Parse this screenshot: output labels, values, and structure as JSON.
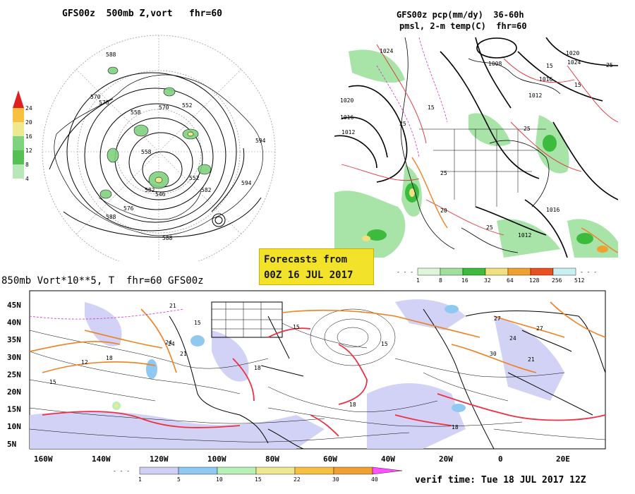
{
  "panels": {
    "top_left": {
      "title": "GFS00z  500mb Z,vort   fhr=60",
      "scale_labels": [
        "24",
        "20",
        "16",
        "12",
        "8",
        "4"
      ],
      "contour_labels": [
        "588",
        "570",
        "576",
        "558",
        "570",
        "552",
        "582",
        "594",
        "552",
        "582",
        "594",
        "576",
        "588",
        "588",
        "546",
        "558"
      ],
      "scale_colors": [
        "#e02020",
        "#f7c040",
        "#f0e890",
        "#7fd27f",
        "#56c056",
        "#b8e8b8"
      ]
    },
    "top_right": {
      "title_line1": "GFS00z pcp(mm/dy)  36-60h",
      "title_line2": "pmsl, 2-m temp(C)  fhr=60",
      "isobar_labels": [
        "1024",
        "1020",
        "1016",
        "1012",
        "1008",
        "1012",
        "1016",
        "1020",
        "1024",
        "1016",
        "1012"
      ],
      "temp_labels": [
        "15",
        "25",
        "25",
        "15",
        "25",
        "25",
        "15",
        "20",
        "25"
      ],
      "scale_labels": [
        "1",
        "8",
        "16",
        "32",
        "64",
        "128",
        "256",
        "512"
      ],
      "scale_colors": [
        "#dff5d8",
        "#9fe09f",
        "#3dbb3d",
        "#f0e080",
        "#f0a030",
        "#e85020",
        "#c8f0f0"
      ]
    },
    "bottom": {
      "title": "850mb Vort*10**5, T  fhr=60 GFS00z",
      "lat_labels": [
        "45N",
        "40N",
        "35N",
        "30N",
        "25N",
        "20N",
        "15N",
        "10N",
        "5N"
      ],
      "lon_labels": [
        "160W",
        "140W",
        "120W",
        "100W",
        "80W",
        "60W",
        "40W",
        "20W",
        "0",
        "20E"
      ],
      "temp_labels": [
        "12",
        "15",
        "18",
        "21",
        "24",
        "15",
        "18",
        "15",
        "18",
        "21",
        "24",
        "27",
        "30",
        "18",
        "15",
        "21",
        "24",
        "27"
      ],
      "scale_labels": [
        "1",
        "5",
        "10",
        "15",
        "22",
        "30",
        "40"
      ],
      "scale_colors": [
        "#d0d0f5",
        "#8fc8f0",
        "#b8f0b8",
        "#f0e890",
        "#f7c040",
        "#f0a030",
        "#ff50ff"
      ]
    }
  },
  "forecast_badge": {
    "line1": "Forecasts from",
    "line2": "00Z 16 JUL 2017"
  },
  "verif_time": "verif time: Tue 18 JUL 2017 12Z"
}
